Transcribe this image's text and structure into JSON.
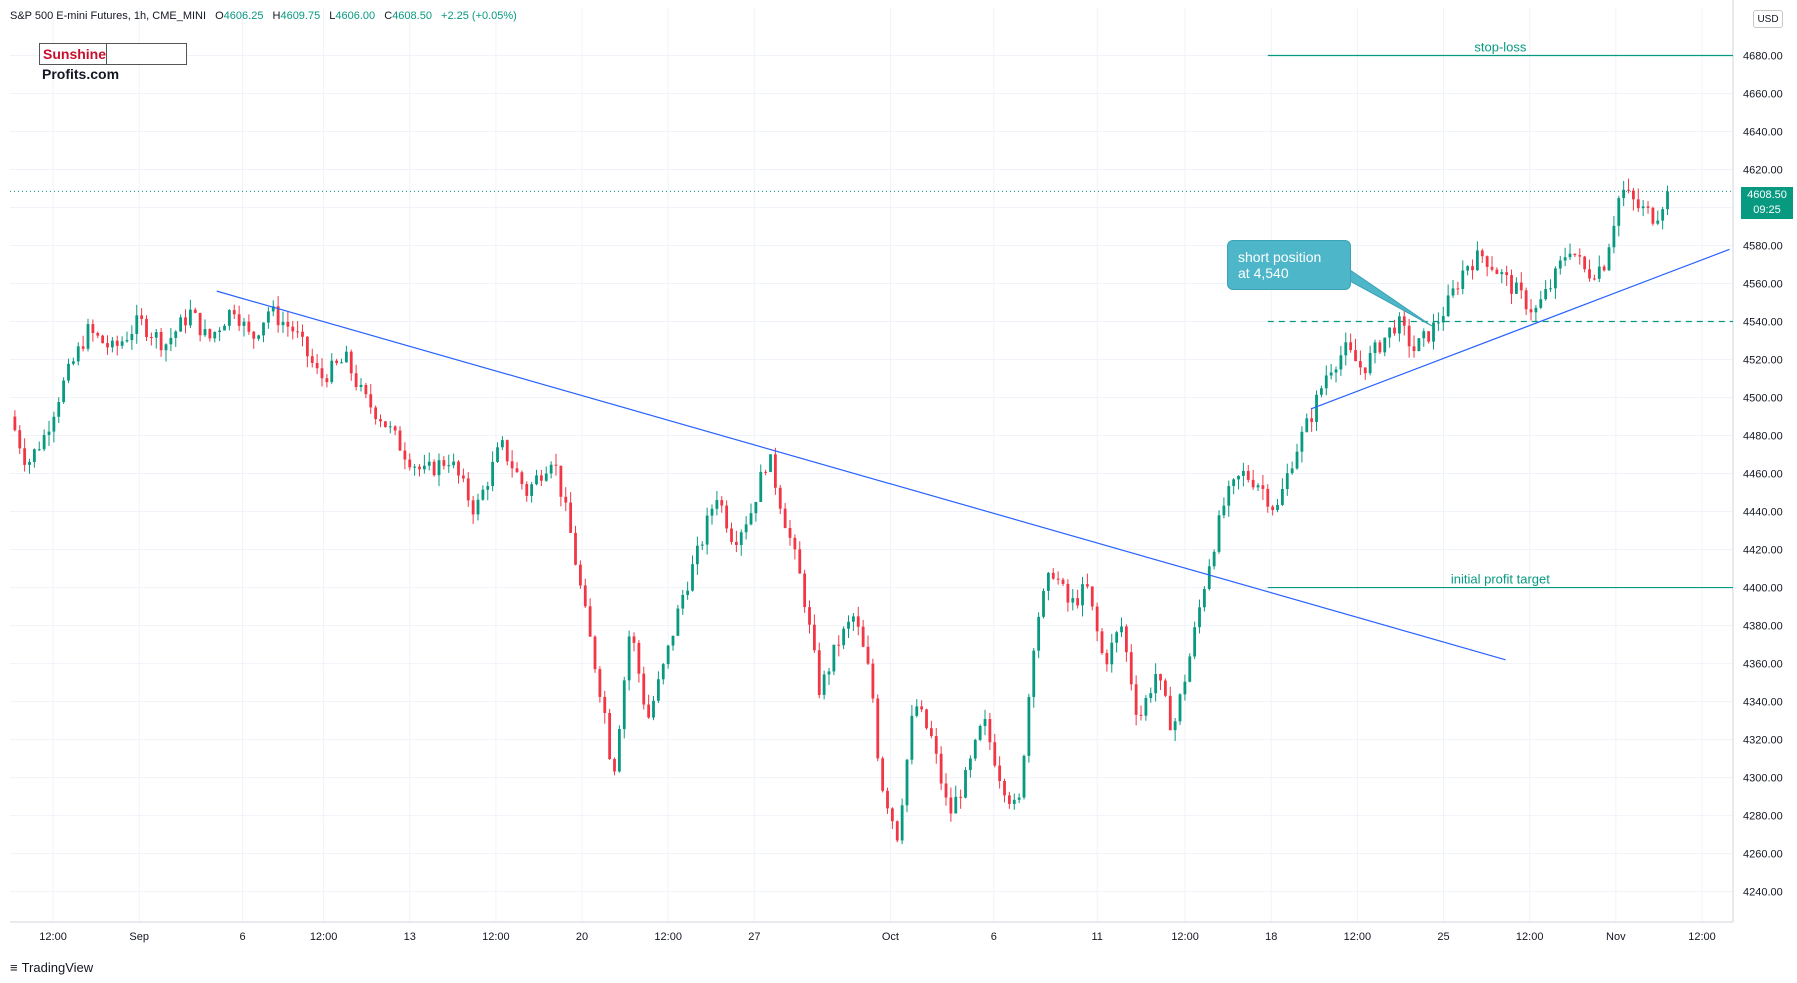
{
  "header": {
    "title": "S&P 500 E-mini Futures, 1h, CME_MINI",
    "open_label": "O",
    "open": "4606.25",
    "high_label": "H",
    "high": "4609.75",
    "low_label": "L",
    "low": "4606.00",
    "close_label": "C",
    "close": "4608.50",
    "change": "+2.25 (+0.05%)"
  },
  "logo": {
    "part1": "Sunshine",
    "part2": "Profits.com"
  },
  "footer": {
    "brand": "TradingView"
  },
  "currency": "USD",
  "last_price": {
    "value": "4608.50",
    "countdown": "09:25"
  },
  "callout": {
    "line1": "short position",
    "line2": "at 4,540"
  },
  "colors": {
    "up": "#089981",
    "down": "#f23645",
    "trendline": "#2962ff",
    "level": "#089981",
    "callout": "#4db6c9"
  },
  "chart_data": {
    "type": "candlestick",
    "title": "S&P 500 E-mini Futures, 1h, CME_MINI",
    "y_axis_ticks": [
      "4240.00",
      "4260.00",
      "4280.00",
      "4300.00",
      "4320.00",
      "4340.00",
      "4360.00",
      "4380.00",
      "4400.00",
      "4420.00",
      "4440.00",
      "4460.00",
      "4480.00",
      "4500.00",
      "4520.00",
      "4540.00",
      "4560.00",
      "4580.00",
      "4600.00",
      "4620.00",
      "4640.00",
      "4660.00",
      "4680.00"
    ],
    "ylim": [
      4224,
      4705
    ],
    "x_axis_ticks": [
      "12:00",
      "Sep",
      "6",
      "12:00",
      "13",
      "12:00",
      "20",
      "12:00",
      "27",
      "Oct",
      "6",
      "11",
      "12:00",
      "18",
      "12:00",
      "25",
      "12:00",
      "Nov",
      "12:00"
    ],
    "x_tick_fraction": [
      0.025,
      0.075,
      0.135,
      0.182,
      0.232,
      0.282,
      0.332,
      0.382,
      0.432,
      0.511,
      0.571,
      0.631,
      0.682,
      0.732,
      0.782,
      0.832,
      0.882,
      0.932,
      0.982
    ],
    "price_path": [
      [
        0.0,
        4490
      ],
      [
        0.01,
        4465
      ],
      [
        0.02,
        4480
      ],
      [
        0.03,
        4505
      ],
      [
        0.045,
        4535
      ],
      [
        0.06,
        4525
      ],
      [
        0.075,
        4540
      ],
      [
        0.09,
        4528
      ],
      [
        0.105,
        4545
      ],
      [
        0.115,
        4530
      ],
      [
        0.13,
        4548
      ],
      [
        0.14,
        4530
      ],
      [
        0.15,
        4546
      ],
      [
        0.165,
        4535
      ],
      [
        0.18,
        4510
      ],
      [
        0.195,
        4520
      ],
      [
        0.205,
        4500
      ],
      [
        0.215,
        4490
      ],
      [
        0.23,
        4470
      ],
      [
        0.24,
        4460
      ],
      [
        0.255,
        4468
      ],
      [
        0.27,
        4440
      ],
      [
        0.285,
        4475
      ],
      [
        0.3,
        4450
      ],
      [
        0.315,
        4470
      ],
      [
        0.325,
        4430
      ],
      [
        0.335,
        4380
      ],
      [
        0.345,
        4335
      ],
      [
        0.35,
        4300
      ],
      [
        0.36,
        4380
      ],
      [
        0.37,
        4330
      ],
      [
        0.38,
        4360
      ],
      [
        0.39,
        4395
      ],
      [
        0.4,
        4420
      ],
      [
        0.41,
        4450
      ],
      [
        0.42,
        4425
      ],
      [
        0.43,
        4440
      ],
      [
        0.44,
        4470
      ],
      [
        0.45,
        4435
      ],
      [
        0.46,
        4400
      ],
      [
        0.47,
        4345
      ],
      [
        0.48,
        4370
      ],
      [
        0.49,
        4385
      ],
      [
        0.5,
        4350
      ],
      [
        0.505,
        4300
      ],
      [
        0.515,
        4270
      ],
      [
        0.525,
        4340
      ],
      [
        0.535,
        4320
      ],
      [
        0.545,
        4280
      ],
      [
        0.555,
        4300
      ],
      [
        0.565,
        4330
      ],
      [
        0.575,
        4300
      ],
      [
        0.585,
        4280
      ],
      [
        0.595,
        4380
      ],
      [
        0.605,
        4410
      ],
      [
        0.615,
        4390
      ],
      [
        0.625,
        4400
      ],
      [
        0.635,
        4360
      ],
      [
        0.645,
        4380
      ],
      [
        0.655,
        4330
      ],
      [
        0.665,
        4355
      ],
      [
        0.675,
        4325
      ],
      [
        0.685,
        4365
      ],
      [
        0.695,
        4410
      ],
      [
        0.705,
        4445
      ],
      [
        0.715,
        4460
      ],
      [
        0.725,
        4455
      ],
      [
        0.735,
        4440
      ],
      [
        0.745,
        4470
      ],
      [
        0.755,
        4490
      ],
      [
        0.765,
        4515
      ],
      [
        0.775,
        4525
      ],
      [
        0.785,
        4515
      ],
      [
        0.795,
        4528
      ],
      [
        0.805,
        4540
      ],
      [
        0.815,
        4525
      ],
      [
        0.825,
        4535
      ],
      [
        0.835,
        4550
      ],
      [
        0.845,
        4570
      ],
      [
        0.855,
        4575
      ],
      [
        0.865,
        4565
      ],
      [
        0.875,
        4555
      ],
      [
        0.885,
        4545
      ],
      [
        0.895,
        4560
      ],
      [
        0.905,
        4580
      ],
      [
        0.915,
        4565
      ],
      [
        0.925,
        4570
      ],
      [
        0.935,
        4610
      ],
      [
        0.945,
        4600
      ],
      [
        0.955,
        4595
      ],
      [
        0.962,
        4608.5
      ]
    ],
    "trendlines": [
      {
        "name": "downtrend",
        "points": [
          [
            0.12,
            4556
          ],
          [
            0.868,
            4362
          ]
        ]
      },
      {
        "name": "uptrend",
        "points": [
          [
            0.755,
            4494
          ],
          [
            0.998,
            4578
          ]
        ]
      }
    ],
    "levels": [
      {
        "value": 4680,
        "label": "stop-loss",
        "style": "solid",
        "x_start": 0.73
      },
      {
        "value": 4540,
        "label": "",
        "style": "dashed",
        "x_start": 0.73
      },
      {
        "value": 4400,
        "label": "initial profit target",
        "style": "solid",
        "x_start": 0.73
      }
    ],
    "last_price": 4608.5,
    "grid": true
  }
}
